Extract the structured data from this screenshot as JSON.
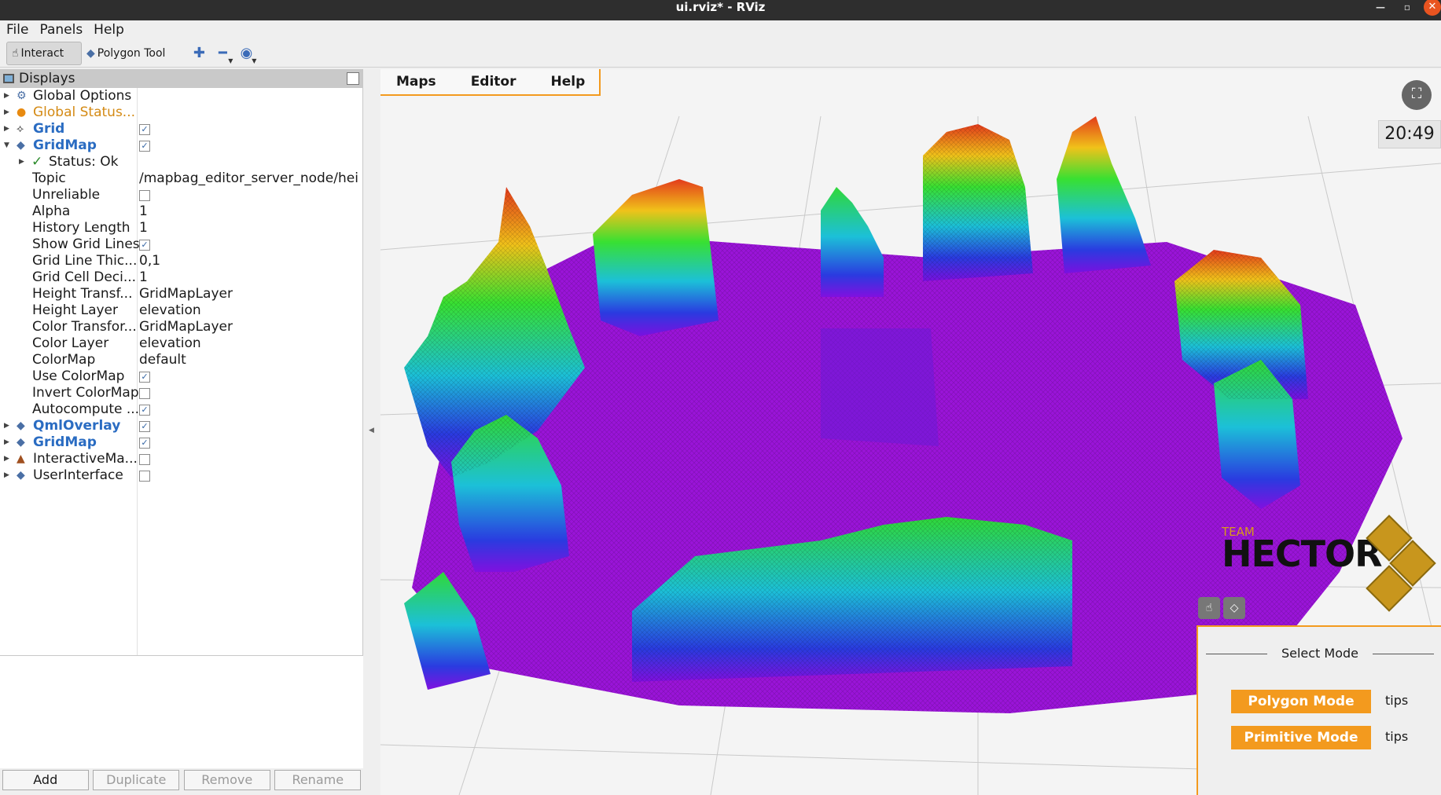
{
  "window": {
    "title": "ui.rviz* - RViz"
  },
  "menubar": [
    "File",
    "Panels",
    "Help"
  ],
  "toolbar": {
    "interact": "Interact",
    "polygon_tool": "Polygon Tool"
  },
  "displays": {
    "title": "Displays",
    "items": [
      {
        "label": "Global Options"
      },
      {
        "label": "Global Status..."
      },
      {
        "label": "Grid"
      },
      {
        "label": "GridMap"
      },
      {
        "label": "Status: Ok"
      },
      {
        "label": "Topic",
        "value": "/mapbag_editor_server_node/hei..."
      },
      {
        "label": "Unreliable"
      },
      {
        "label": "Alpha",
        "value": "1"
      },
      {
        "label": "History Length",
        "value": "1"
      },
      {
        "label": "Show Grid Lines"
      },
      {
        "label": "Grid Line Thic...",
        "value": "0,1"
      },
      {
        "label": "Grid Cell Deci...",
        "value": "1"
      },
      {
        "label": "Height Transf...",
        "value": "GridMapLayer"
      },
      {
        "label": "Height Layer",
        "value": "elevation"
      },
      {
        "label": "Color Transfor...",
        "value": "GridMapLayer"
      },
      {
        "label": "Color Layer",
        "value": "elevation"
      },
      {
        "label": "ColorMap",
        "value": "default"
      },
      {
        "label": "Use ColorMap"
      },
      {
        "label": "Invert ColorMap"
      },
      {
        "label": "Autocompute ..."
      },
      {
        "label": "QmlOverlay"
      },
      {
        "label": "GridMap"
      },
      {
        "label": "InteractiveMa..."
      },
      {
        "label": "UserInterface"
      }
    ],
    "buttons": {
      "add": "Add",
      "duplicate": "Duplicate",
      "remove": "Remove",
      "rename": "Rename"
    }
  },
  "overlay": {
    "menu": [
      "Maps",
      "Editor",
      "Help"
    ],
    "clock": "20:49",
    "logo_team": "TEAM",
    "logo_name": "HECTOR",
    "select_mode": "Select Mode",
    "polygon_mode": "Polygon Mode",
    "primitive_mode": "Primitive Mode",
    "tips": "tips"
  }
}
